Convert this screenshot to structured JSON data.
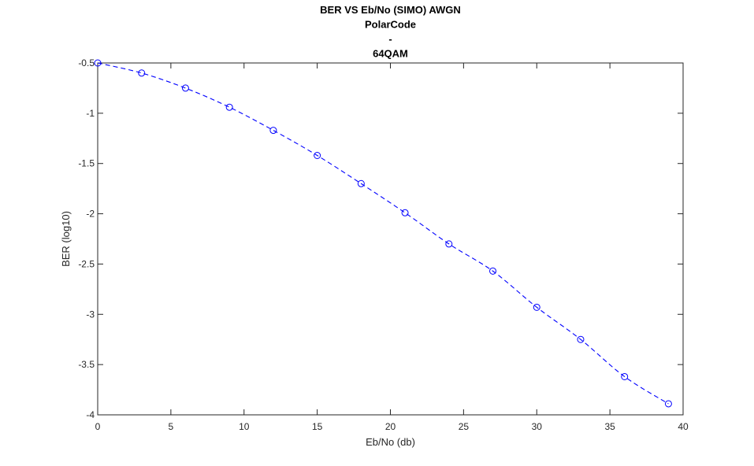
{
  "chart_data": {
    "type": "line",
    "title_lines": [
      "BER VS Eb/No (SIMO) AWGN",
      "PolarCode",
      "-",
      "64QAM"
    ],
    "xlabel": "Eb/No (db)",
    "ylabel": "BER (log10)",
    "xlim": [
      0,
      40
    ],
    "ylim": [
      -4,
      -0.5
    ],
    "xticks": [
      0,
      5,
      10,
      15,
      20,
      25,
      30,
      35,
      40
    ],
    "yticks": [
      -4,
      -3.5,
      -3,
      -2.5,
      -2,
      -1.5,
      -1,
      -0.5
    ],
    "xtick_labels": [
      "0",
      "5",
      "10",
      "15",
      "20",
      "25",
      "30",
      "35",
      "40"
    ],
    "ytick_labels": [
      "-4",
      "-3.5",
      "-3",
      "-2.5",
      "-2",
      "-1.5",
      "-1",
      "-0.5"
    ],
    "grid": false,
    "series": [
      {
        "color": "#0000ff",
        "line_style": "dashed",
        "marker": "circle",
        "x": [
          0,
          3,
          6,
          9,
          12,
          15,
          18,
          21,
          24,
          27,
          30,
          33,
          36,
          39
        ],
        "y": [
          -0.5,
          -0.6,
          -0.75,
          -0.94,
          -1.17,
          -1.42,
          -1.7,
          -1.99,
          -2.3,
          -2.57,
          -2.93,
          -3.25,
          -3.62,
          -3.89
        ]
      }
    ]
  }
}
